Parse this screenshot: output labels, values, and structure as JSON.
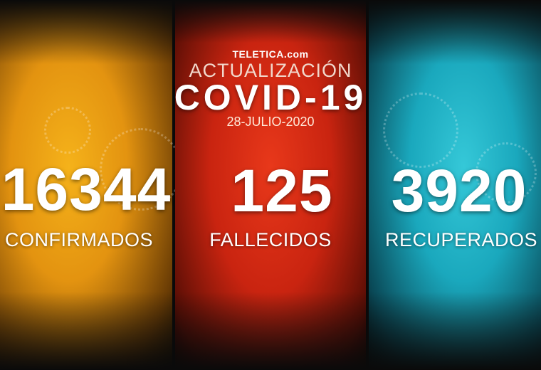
{
  "brand": "TELETICA.com",
  "header": {
    "kicker": "ACTUALIZACIÓN",
    "title": "COVID-19",
    "date": "28-JULIO-2020"
  },
  "stats": [
    {
      "value": "16344",
      "label": "CONFIRMADOS",
      "color": "#f0a818"
    },
    {
      "value": "125",
      "label": "FALLECIDOS",
      "color": "#d8301a"
    },
    {
      "value": "3920",
      "label": "RECUPERADOS",
      "color": "#28b8cc"
    }
  ]
}
